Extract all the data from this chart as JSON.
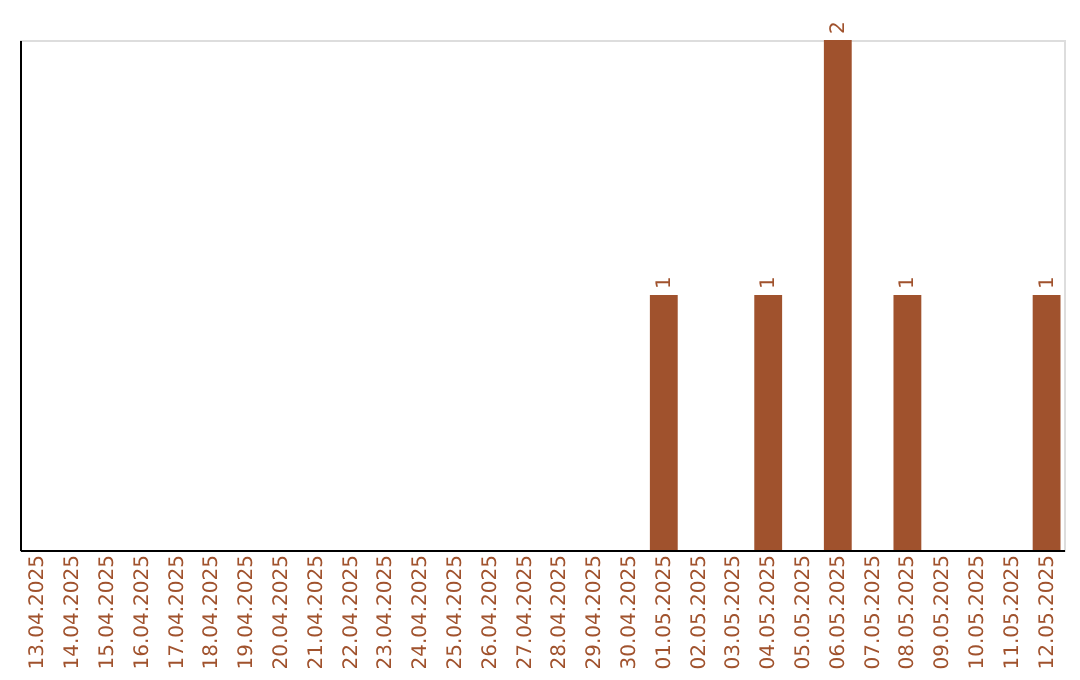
{
  "chart_data": {
    "type": "bar",
    "categories": [
      "13.04.2025",
      "14.04.2025",
      "15.04.2025",
      "16.04.2025",
      "17.04.2025",
      "18.04.2025",
      "19.04.2025",
      "20.04.2025",
      "21.04.2025",
      "22.04.2025",
      "23.04.2025",
      "24.04.2025",
      "25.04.2025",
      "26.04.2025",
      "27.04.2025",
      "28.04.2025",
      "29.04.2025",
      "30.04.2025",
      "01.05.2025",
      "02.05.2025",
      "03.05.2025",
      "04.05.2025",
      "05.05.2025",
      "06.05.2025",
      "07.05.2025",
      "08.05.2025",
      "09.05.2025",
      "10.05.2025",
      "11.05.2025",
      "12.05.2025"
    ],
    "values": [
      null,
      null,
      null,
      null,
      null,
      null,
      null,
      null,
      null,
      null,
      null,
      null,
      null,
      null,
      null,
      null,
      null,
      null,
      1,
      null,
      null,
      1,
      null,
      2,
      null,
      1,
      null,
      null,
      null,
      1
    ],
    "value_labels": [
      null,
      null,
      null,
      null,
      null,
      null,
      null,
      null,
      null,
      null,
      null,
      null,
      null,
      null,
      null,
      null,
      null,
      null,
      "1",
      null,
      null,
      "1",
      null,
      "2",
      null,
      "1",
      null,
      null,
      null,
      "1"
    ],
    "color": "#a0522d",
    "tick_labels": "x",
    "grid": false,
    "legend": false
  }
}
